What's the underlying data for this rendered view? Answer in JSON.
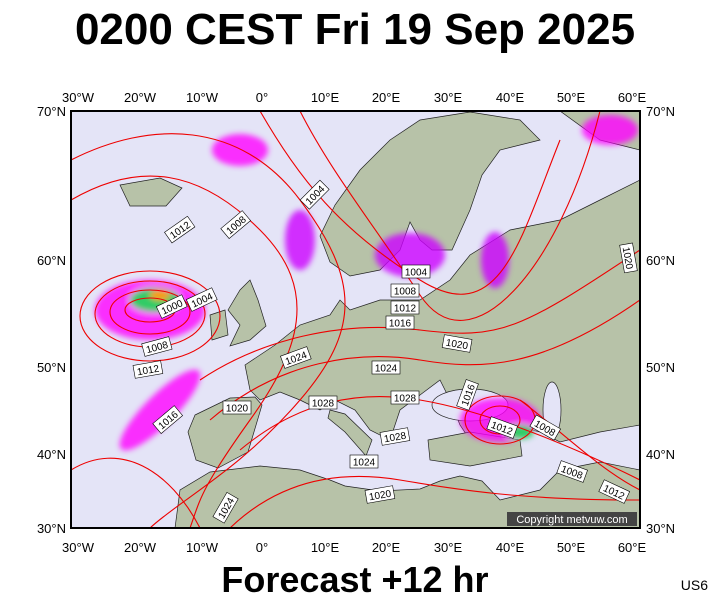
{
  "title": "0200 CEST Fri 19 Sep 2025",
  "footer": "Forecast +12 hr",
  "code": "US6",
  "copyright": "Copyright metvuw.com",
  "map": {
    "longitude_labels": [
      "30°W",
      "20°W",
      "10°W",
      "0°",
      "10°E",
      "20°E",
      "30°E",
      "40°E",
      "50°E",
      "60°E"
    ],
    "latitude_labels": [
      "70°N",
      "60°N",
      "50°N",
      "40°N",
      "30°N"
    ],
    "isobar_labels": [
      "1012",
      "1008",
      "1004",
      "1000",
      "1004",
      "1008",
      "1012",
      "1016",
      "1004",
      "1008",
      "1012",
      "1016",
      "1020",
      "1024",
      "1024",
      "1028",
      "1028",
      "1020",
      "1016",
      "1012",
      "1008",
      "1028",
      "1024",
      "1008",
      "1012",
      "1020",
      "1024",
      "1020"
    ]
  }
}
